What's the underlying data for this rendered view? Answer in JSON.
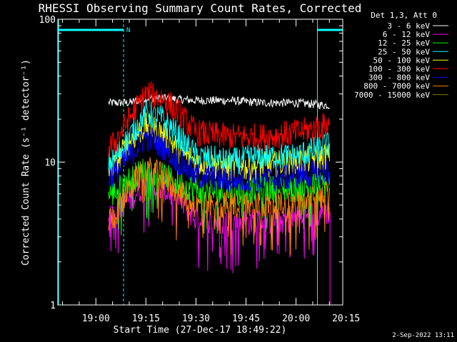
{
  "chart_data": {
    "type": "line",
    "title": "RHESSI Observing Summary Count Rates, Corrected",
    "xlabel": "Start Time (27-Dec-17 18:49:22)",
    "ylabel": "Corrected Count Rate (s⁻¹ detector⁻¹)",
    "yscale": "log",
    "ylim": [
      1,
      100
    ],
    "yticks": [
      {
        "value": 1,
        "label": "1"
      },
      {
        "value": 10,
        "label": "10"
      },
      {
        "value": 100,
        "label": "100"
      }
    ],
    "xlim_minutes": [
      -11.4,
      74.0
    ],
    "xticks": [
      {
        "minute": 0,
        "label": "19:00"
      },
      {
        "minute": 15,
        "label": "19:15"
      },
      {
        "minute": 30,
        "label": "19:30"
      },
      {
        "minute": 45,
        "label": "19:45"
      },
      {
        "minute": 60,
        "label": "20:00"
      },
      {
        "minute": 75,
        "label": "20:15"
      }
    ],
    "legend_header": "Det 1,3, Att 0",
    "legend_position": "top-right",
    "footer_date": "2-Sep-2022 13:11",
    "night_flag": "N",
    "data_start_minute": 3.8,
    "data_end_minute": 70.2,
    "night_intervals": [
      {
        "start_minute": -11.4,
        "end_minute": 8.3
      },
      {
        "start_minute": 66.4,
        "end_minute": 84.5
      }
    ],
    "series": [
      {
        "name": "3 - 6 keV",
        "color": "#ffffff",
        "values": [
          [
            5,
            26
          ],
          [
            10,
            26
          ],
          [
            15,
            28
          ],
          [
            20,
            28
          ],
          [
            30,
            27
          ],
          [
            40,
            27
          ],
          [
            50,
            26
          ],
          [
            60,
            26
          ],
          [
            69,
            25
          ]
        ]
      },
      {
        "name": "6 - 12 keV",
        "color": "#ff00ff",
        "values": [
          [
            5,
            4.5
          ],
          [
            10,
            5.5
          ],
          [
            15,
            7
          ],
          [
            20,
            6.5
          ],
          [
            25,
            5.5
          ],
          [
            30,
            4
          ],
          [
            40,
            3.8
          ],
          [
            50,
            3.8
          ],
          [
            60,
            4
          ],
          [
            69,
            4.5
          ]
        ]
      },
      {
        "name": "12 - 25 keV",
        "color": "#00ff00",
        "values": [
          [
            5,
            6
          ],
          [
            10,
            7.5
          ],
          [
            15,
            9
          ],
          [
            20,
            8
          ],
          [
            25,
            7
          ],
          [
            30,
            6.5
          ],
          [
            40,
            6
          ],
          [
            50,
            6.5
          ],
          [
            60,
            6.5
          ],
          [
            69,
            7
          ]
        ]
      },
      {
        "name": "25 - 50 keV",
        "color": "#00ffff",
        "values": [
          [
            5,
            10
          ],
          [
            10,
            15
          ],
          [
            15,
            22
          ],
          [
            20,
            20
          ],
          [
            25,
            15
          ],
          [
            30,
            11
          ],
          [
            40,
            10
          ],
          [
            50,
            11
          ],
          [
            60,
            11
          ],
          [
            69,
            13
          ]
        ]
      },
      {
        "name": "50 - 100 keV",
        "color": "#ffff00",
        "values": [
          [
            5,
            9
          ],
          [
            10,
            14
          ],
          [
            15,
            18
          ],
          [
            20,
            16
          ],
          [
            25,
            12
          ],
          [
            30,
            10
          ],
          [
            40,
            9
          ],
          [
            50,
            9.5
          ],
          [
            60,
            10
          ],
          [
            69,
            11
          ]
        ]
      },
      {
        "name": "100 - 300 keV",
        "color": "#ff0000",
        "values": [
          [
            5,
            13
          ],
          [
            10,
            20
          ],
          [
            15,
            30
          ],
          [
            20,
            28
          ],
          [
            25,
            22
          ],
          [
            30,
            16
          ],
          [
            40,
            15
          ],
          [
            50,
            15
          ],
          [
            60,
            16
          ],
          [
            69,
            18
          ]
        ]
      },
      {
        "name": "300 - 800 keV",
        "color": "#0000ff",
        "values": [
          [
            5,
            8
          ],
          [
            10,
            11
          ],
          [
            15,
            15
          ],
          [
            20,
            13
          ],
          [
            25,
            10
          ],
          [
            30,
            8
          ],
          [
            40,
            7.5
          ],
          [
            50,
            7.5
          ],
          [
            60,
            8
          ],
          [
            69,
            8.5
          ]
        ]
      },
      {
        "name": "800 - 7000 keV",
        "color": "#ff8000",
        "values": [
          [
            5,
            4
          ],
          [
            10,
            6.5
          ],
          [
            15,
            9
          ],
          [
            20,
            8
          ],
          [
            25,
            6
          ],
          [
            30,
            5
          ],
          [
            40,
            5
          ],
          [
            50,
            5
          ],
          [
            60,
            5
          ],
          [
            69,
            6
          ]
        ]
      },
      {
        "name": "7000 - 15000 keV",
        "color": "#808000",
        "values": []
      }
    ]
  }
}
